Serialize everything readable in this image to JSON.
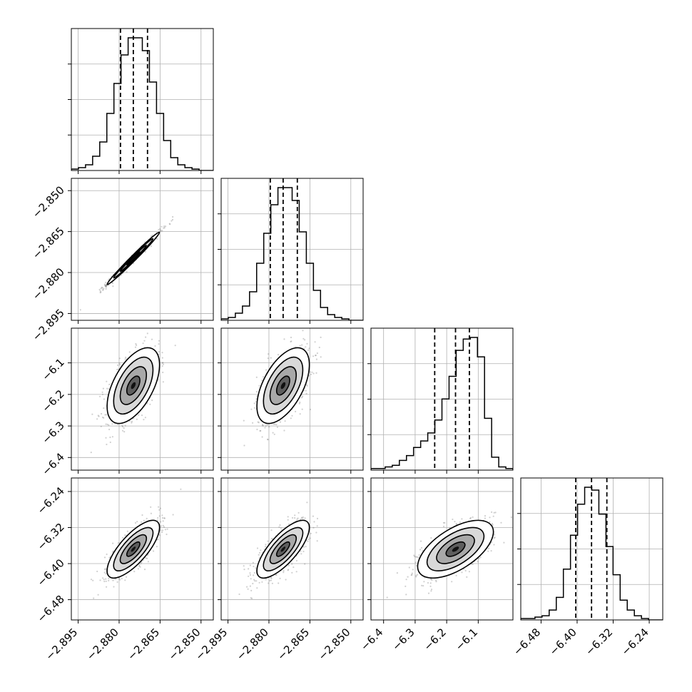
{
  "chart_data": {
    "type": "corner",
    "description_note": "",
    "parameters": [
      {
        "range": [
          -2.8975,
          -2.8455
        ],
        "ticks": [
          "-2.895",
          "-2.880",
          "-2.865",
          "-2.850"
        ],
        "tick_values": [
          -2.895,
          -2.88,
          -2.865,
          -2.85
        ],
        "quantiles": [
          -2.8795,
          -2.8748,
          -2.8696
        ]
      },
      {
        "range": [
          -2.8975,
          -2.8455
        ],
        "ticks": [
          "-2.895",
          "-2.880",
          "-2.865",
          "-2.850"
        ],
        "tick_values": [
          -2.895,
          -2.88,
          -2.865,
          -2.85
        ],
        "quantiles": [
          -2.8795,
          -2.8748,
          -2.8696
        ]
      },
      {
        "range": [
          -6.44,
          -5.99
        ],
        "ticks": [
          "-6.4",
          "-6.3",
          "-6.2",
          "-6.1"
        ],
        "tick_values": [
          -6.4,
          -6.3,
          -6.2,
          -6.1
        ],
        "quantiles": [
          -6.238,
          -6.172,
          -6.128
        ]
      },
      {
        "range": [
          -6.525,
          -6.21
        ],
        "ticks": [
          "-6.48",
          "-6.40",
          "-6.32",
          "-6.24"
        ],
        "tick_values": [
          -6.48,
          -6.4,
          -6.32,
          -6.24
        ],
        "quantiles": [
          -6.403,
          -6.368,
          -6.334
        ]
      }
    ],
    "histograms": [
      [
        1,
        2,
        4,
        10,
        20,
        40,
        61,
        81,
        93,
        93,
        84,
        62,
        40,
        21,
        9,
        4,
        2,
        1,
        0,
        0
      ],
      [
        1,
        2,
        5,
        10,
        20,
        40,
        61,
        81,
        93,
        93,
        84,
        62,
        40,
        21,
        9,
        4,
        2,
        1,
        0,
        0
      ],
      [
        1,
        1,
        2,
        3,
        6,
        9,
        14,
        18,
        23,
        31,
        44,
        58,
        74,
        81,
        82,
        70,
        32,
        8,
        2,
        1
      ],
      [
        1,
        1,
        2,
        3,
        7,
        16,
        36,
        60,
        82,
        94,
        92,
        75,
        52,
        32,
        14,
        7,
        3,
        1,
        0,
        0
      ]
    ],
    "gaussian_stats": {
      "means": [
        -2.8748,
        -2.8748,
        -6.172,
        -6.368
      ],
      "sigmas": [
        0.0048,
        0.0048,
        0.06,
        0.032
      ],
      "correlations": [
        [
          1.0,
          0.99,
          0.55,
          0.75
        ],
        [
          0.99,
          1.0,
          0.55,
          0.75
        ],
        [
          0.55,
          0.55,
          1.0,
          0.6
        ],
        [
          0.75,
          0.75,
          0.6,
          1.0
        ]
      ]
    },
    "grid": true,
    "colors": {
      "lines": "#000000",
      "grid": "#b0b0b0",
      "points": "#777777",
      "density": "#000000"
    }
  }
}
